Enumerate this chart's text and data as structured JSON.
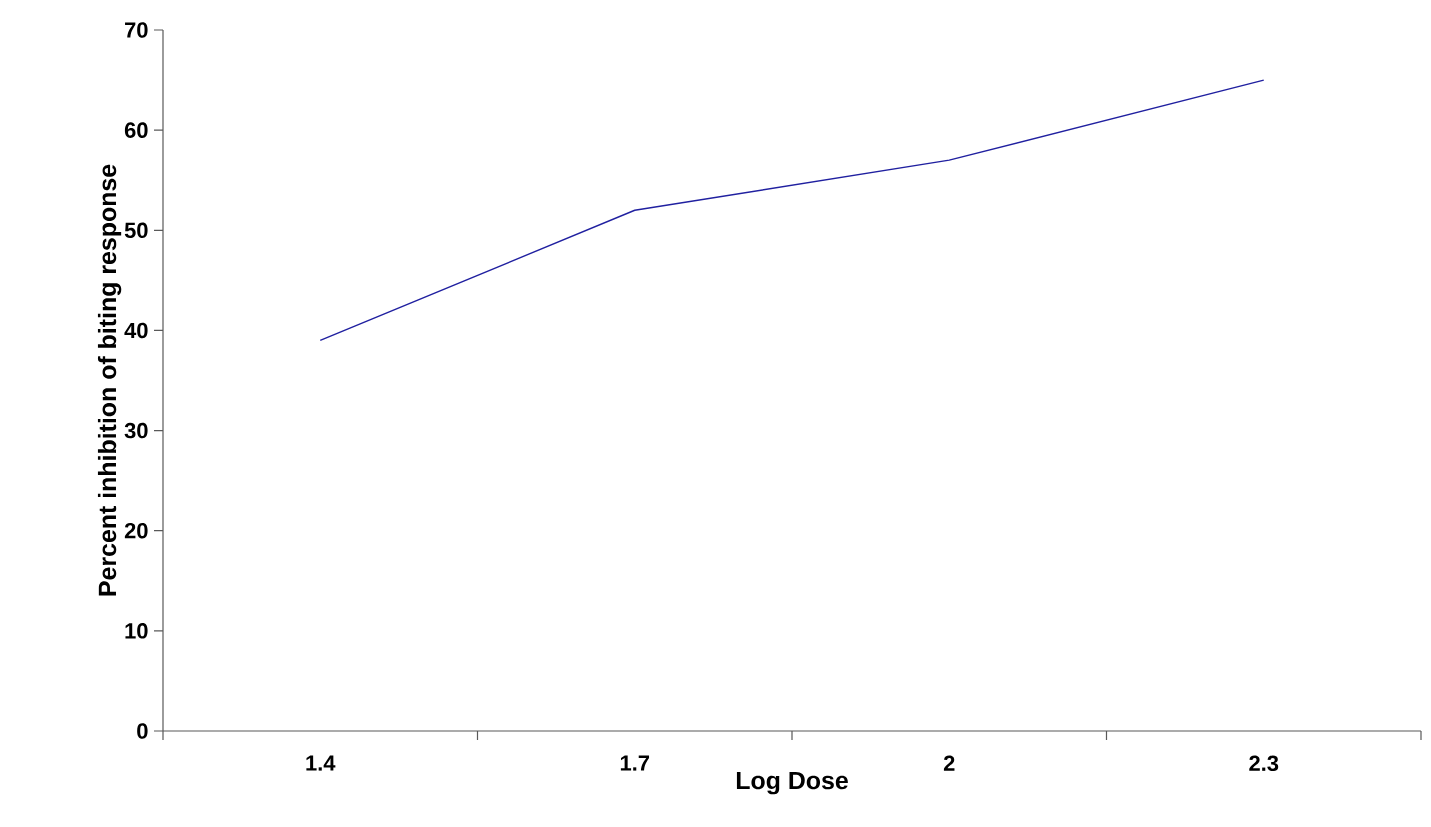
{
  "chart_data": {
    "type": "line",
    "xlabel": "Log Dose",
    "ylabel": "Percent inhibition of biting response",
    "categories": [
      "1.4",
      "1.7",
      "2",
      "2.3"
    ],
    "series": [
      {
        "color": "#2020a0",
        "values": [
          39,
          52,
          57,
          65
        ]
      }
    ],
    "ylim": [
      0,
      70
    ],
    "yticks": [
      0,
      10,
      20,
      30,
      40,
      50,
      60,
      70
    ],
    "grid": false,
    "marker": "none",
    "line_style": "solid"
  }
}
